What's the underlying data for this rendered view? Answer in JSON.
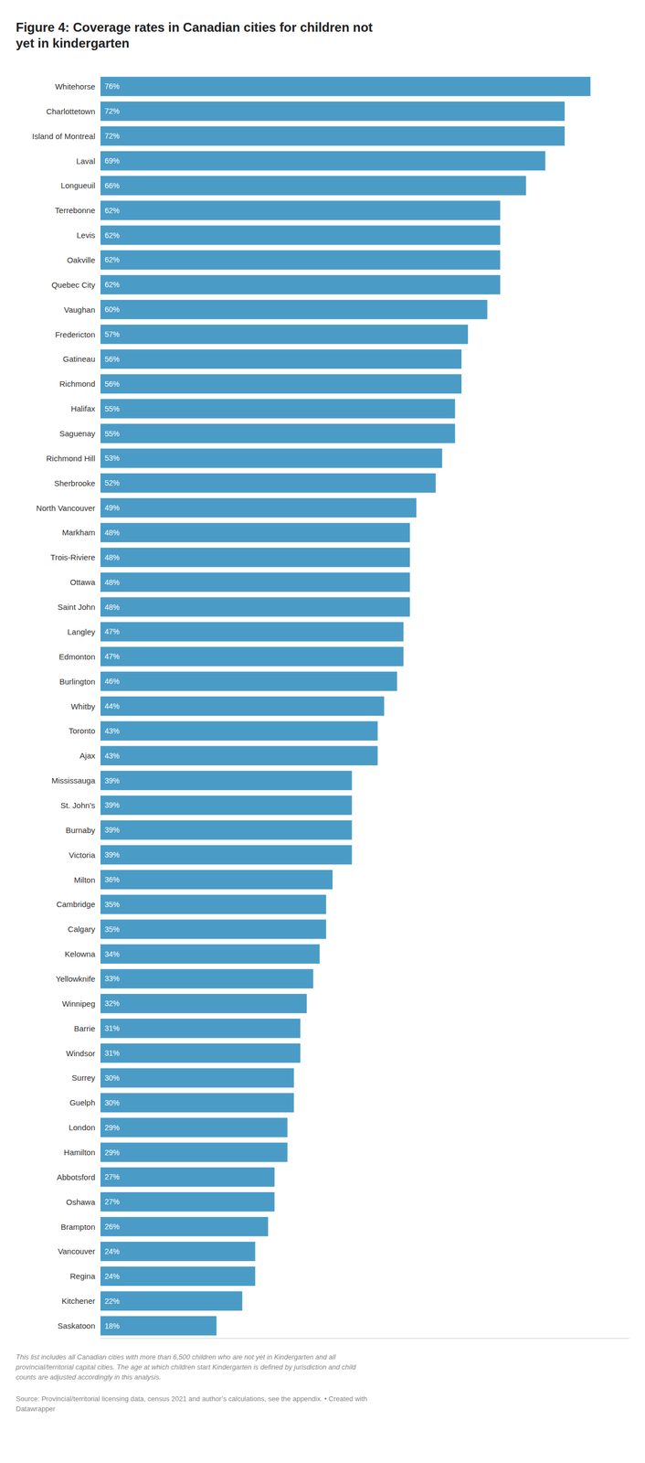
{
  "chart_data": {
    "type": "bar",
    "orientation": "horizontal",
    "title": "Figure 4: Coverage rates in Canadian cities for children not\nyet in kindergarten",
    "categories": [
      "Whitehorse",
      "Charlottetown",
      "Island of Montreal",
      "Laval",
      "Longueuil",
      "Terrebonne",
      "Levis",
      "Oakville",
      "Quebec City",
      "Vaughan",
      "Fredericton",
      "Gatineau",
      "Richmond",
      "Halifax",
      "Saguenay",
      "Richmond Hill",
      "Sherbrooke",
      "North Vancouver",
      "Markham",
      "Trois-Riviere",
      "Ottawa",
      "Saint John",
      "Langley",
      "Edmonton",
      "Burlington",
      "Whitby",
      "Toronto",
      "Ajax",
      "Mississauga",
      "St. John's",
      "Burnaby",
      "Victoria",
      "Milton",
      "Cambridge",
      "Calgary",
      "Kelowna",
      "Yellowknife",
      "Winnipeg",
      "Barrie",
      "Windsor",
      "Surrey",
      "Guelph",
      "London",
      "Hamilton",
      "Abbotsford",
      "Oshawa",
      "Brampton",
      "Vancouver",
      "Regina",
      "Kitchener",
      "Saskatoon"
    ],
    "values": [
      76,
      72,
      72,
      69,
      66,
      62,
      62,
      62,
      62,
      60,
      57,
      56,
      56,
      55,
      55,
      53,
      52,
      49,
      48,
      48,
      48,
      48,
      47,
      47,
      46,
      44,
      43,
      43,
      39,
      39,
      39,
      39,
      36,
      35,
      35,
      34,
      33,
      32,
      31,
      31,
      30,
      30,
      29,
      29,
      27,
      27,
      26,
      24,
      24,
      22,
      18
    ],
    "value_labels": [
      "76%",
      "72%",
      "72%",
      "69%",
      "66%",
      "62%",
      "62%",
      "62%",
      "62%",
      "60%",
      "57%",
      "56%",
      "56%",
      "55%",
      "55%",
      "53%",
      "52%",
      "49%",
      "48%",
      "48%",
      "48%",
      "48%",
      "47%",
      "47%",
      "46%",
      "44%",
      "43%",
      "43%",
      "39%",
      "39%",
      "39%",
      "39%",
      "36%",
      "35%",
      "35%",
      "34%",
      "33%",
      "32%",
      "31%",
      "31%",
      "30%",
      "30%",
      "29%",
      "29%",
      "27%",
      "27%",
      "26%",
      "24%",
      "24%",
      "22%",
      "18%"
    ],
    "color": "#4a9cc7",
    "xlim": [
      0,
      82
    ],
    "data_labels": true,
    "tick_labels": "y",
    "grid": false,
    "annotations": [
      "This list includes all Canadian cities with more than 6,500 children who are not yet in Kindergarten and all\nprovincial/territorial capital cities. The age at which children start Kindergarten is defined by jurisdiction and child\ncounts are adjusted accordingly in this analysis.",
      "Source: Provincial/territorial licensing data, census 2021 and author’s calculations, see the appendix. • Created with\nDatawrapper"
    ]
  }
}
